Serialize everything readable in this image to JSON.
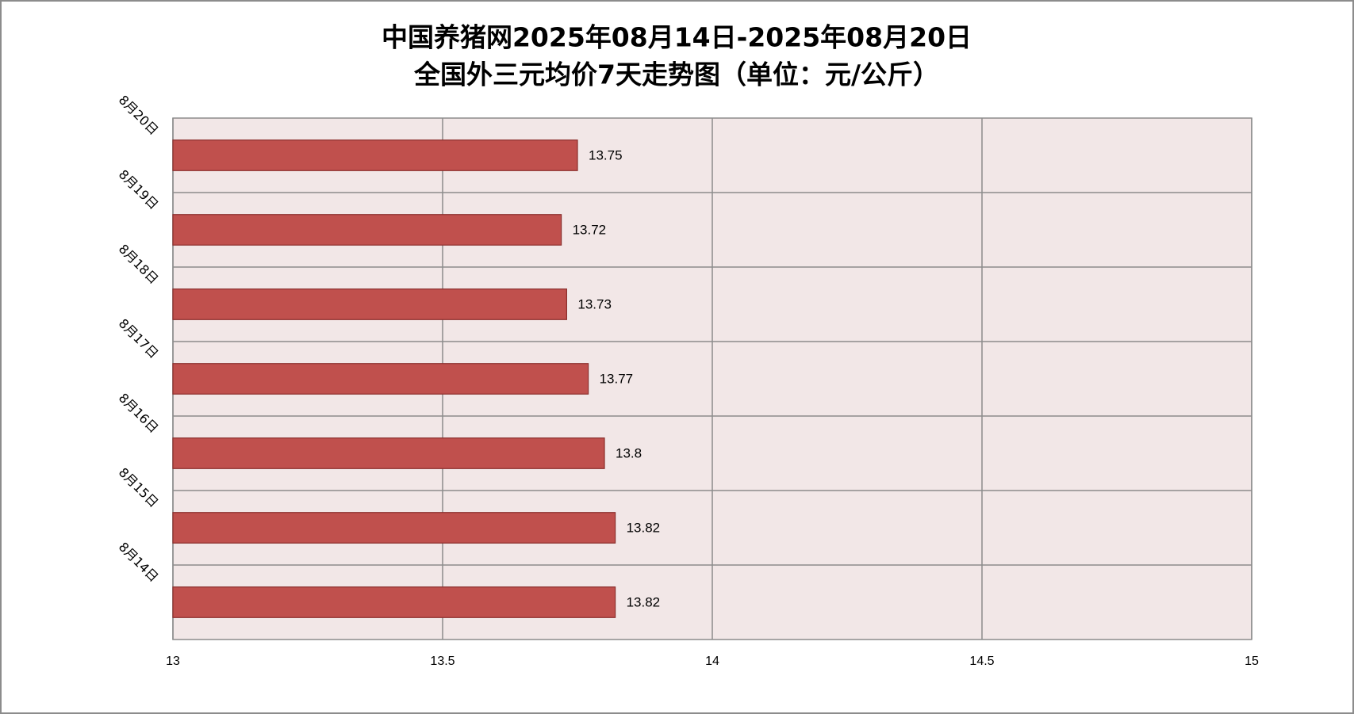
{
  "chart_data": {
    "type": "bar",
    "orientation": "horizontal",
    "title": "中国养猪网2025年08月14日-2025年08月20日",
    "subtitle": "全国外三元均价7天走势图（单位：元/公斤）",
    "categories": [
      "8月14日",
      "8月15日",
      "8月16日",
      "8月17日",
      "8月18日",
      "8月19日",
      "8月20日"
    ],
    "values": [
      13.82,
      13.82,
      13.8,
      13.77,
      13.73,
      13.72,
      13.75
    ],
    "color": "#c0504d",
    "xlim": [
      13,
      15
    ],
    "xticks": [
      13,
      13.5,
      14,
      14.5,
      15
    ],
    "grid": true
  }
}
